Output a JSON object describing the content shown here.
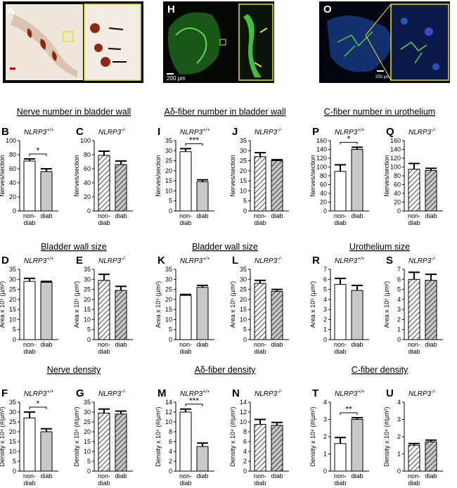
{
  "images": [
    {
      "letter": "A"
    },
    {
      "letter": "H",
      "scale_label": "200 µm"
    },
    {
      "letter": "O",
      "scale_label": "200 µm"
    }
  ],
  "group_titles": [
    "Nerve number in bladder wall",
    "Aδ-fiber number in bladder wall",
    "C-fiber number in urothelium",
    "Bladder wall size",
    "Bladder wall size",
    "Urothelium size",
    "Nerve density",
    "Aδ-fiber density",
    "C-fiber density"
  ],
  "chart_data": [
    {
      "type": "bar",
      "panel": "B",
      "genotype": "NLRP3+/+",
      "ylabel": "Nerves/section",
      "categories": [
        "non-diab",
        "diab"
      ],
      "values": [
        71,
        56
      ],
      "errors": [
        3,
        4
      ],
      "significance": "*",
      "ylim": [
        0,
        100
      ],
      "yticks": [
        0,
        20,
        40,
        60,
        80,
        100
      ],
      "colors": [
        "#ffffff",
        "#c8c8c8"
      ],
      "hatch": false
    },
    {
      "type": "bar",
      "panel": "C",
      "genotype": "NLRP3-/-",
      "ylabel": "Nerves/section",
      "categories": [
        "non-diab",
        "diab"
      ],
      "values": [
        79,
        66
      ],
      "errors": [
        6,
        5
      ],
      "ylim": [
        0,
        100
      ],
      "yticks": [
        0,
        20,
        40,
        60,
        80,
        100
      ],
      "colors": [
        "#ffffff",
        "#c8c8c8"
      ],
      "hatch": true
    },
    {
      "type": "bar",
      "panel": "I",
      "genotype": "NLRP3+/+",
      "ylabel": "Nerves/section",
      "categories": [
        "non-diab",
        "diab"
      ],
      "values": [
        29.5,
        14.5
      ],
      "errors": [
        1.5,
        1
      ],
      "significance": "***",
      "ylim": [
        0,
        35
      ],
      "yticks": [
        0,
        5,
        10,
        15,
        20,
        25,
        30,
        35
      ],
      "colors": [
        "#ffffff",
        "#c8c8c8"
      ],
      "hatch": false
    },
    {
      "type": "bar",
      "panel": "J",
      "genotype": "NLRP3-/-",
      "ylabel": "Nerves/section",
      "categories": [
        "non-diab",
        "diab"
      ],
      "values": [
        27,
        25
      ],
      "errors": [
        2,
        0.5
      ],
      "ylim": [
        0,
        35
      ],
      "yticks": [
        0,
        5,
        10,
        15,
        20,
        25,
        30,
        35
      ],
      "colors": [
        "#ffffff",
        "#c8c8c8"
      ],
      "hatch": true
    },
    {
      "type": "bar",
      "panel": "P",
      "genotype": "NLRP3+/+",
      "ylabel": "Nerves/section",
      "categories": [
        "non-diab",
        "diab"
      ],
      "values": [
        90,
        140
      ],
      "errors": [
        15,
        5
      ],
      "significance": "*",
      "ylim": [
        0,
        160
      ],
      "yticks": [
        0,
        20,
        40,
        60,
        80,
        100,
        120,
        140,
        160
      ],
      "colors": [
        "#ffffff",
        "#c8c8c8"
      ],
      "hatch": false
    },
    {
      "type": "bar",
      "panel": "Q",
      "genotype": "NLRP3-/-",
      "ylabel": "Nerves/section",
      "categories": [
        "non-diab",
        "diab"
      ],
      "values": [
        95,
        92
      ],
      "errors": [
        13,
        5
      ],
      "ylim": [
        0,
        160
      ],
      "yticks": [
        0,
        20,
        40,
        60,
        80,
        100,
        120,
        140,
        160
      ],
      "colors": [
        "#ffffff",
        "#c8c8c8"
      ],
      "hatch": true
    },
    {
      "type": "bar",
      "panel": "D",
      "genotype": "NLRP3+/+",
      "ylabel": "Area x 10⁵ (µm²)",
      "categories": [
        "non-diab",
        "diab"
      ],
      "values": [
        29,
        28.5
      ],
      "errors": [
        1.5,
        0.5
      ],
      "ylim": [
        0,
        35
      ],
      "yticks": [
        0,
        5,
        10,
        15,
        20,
        25,
        30,
        35
      ],
      "colors": [
        "#ffffff",
        "#c8c8c8"
      ],
      "hatch": false
    },
    {
      "type": "bar",
      "panel": "E",
      "genotype": "NLRP3-/-",
      "ylabel": "Area x 10⁵ (µm²)",
      "categories": [
        "non-diab",
        "diab"
      ],
      "values": [
        29.5,
        24.5
      ],
      "errors": [
        3,
        2
      ],
      "ylim": [
        0,
        35
      ],
      "yticks": [
        0,
        5,
        10,
        15,
        20,
        25,
        30,
        35
      ],
      "colors": [
        "#ffffff",
        "#c8c8c8"
      ],
      "hatch": true
    },
    {
      "type": "bar",
      "panel": "K",
      "genotype": "NLRP3+/+",
      "ylabel": "Area x 10⁵ (µm²)",
      "categories": [
        "non-diab",
        "diab"
      ],
      "values": [
        22,
        26
      ],
      "errors": [
        0.5,
        1
      ],
      "ylim": [
        0,
        35
      ],
      "yticks": [
        0,
        5,
        10,
        15,
        20,
        25,
        30,
        35
      ],
      "colors": [
        "#ffffff",
        "#c8c8c8"
      ],
      "hatch": false
    },
    {
      "type": "bar",
      "panel": "L",
      "genotype": "NLRP3-/-",
      "ylabel": "Area x 10⁵ (µm²)",
      "categories": [
        "non-diab",
        "diab"
      ],
      "values": [
        28,
        24
      ],
      "errors": [
        1.5,
        1
      ],
      "ylim": [
        0,
        35
      ],
      "yticks": [
        0,
        5,
        10,
        15,
        20,
        25,
        30,
        35
      ],
      "colors": [
        "#ffffff",
        "#c8c8c8"
      ],
      "hatch": true
    },
    {
      "type": "bar",
      "panel": "R",
      "genotype": "NLRP3+/+",
      "ylabel": "Area x 10⁵ (µm²)",
      "categories": [
        "non-diab",
        "diab"
      ],
      "values": [
        5.5,
        4.9
      ],
      "errors": [
        0.6,
        0.5
      ],
      "ylim": [
        0,
        7
      ],
      "yticks": [
        0,
        1,
        2,
        3,
        4,
        5,
        6,
        7
      ],
      "colors": [
        "#ffffff",
        "#c8c8c8"
      ],
      "hatch": false
    },
    {
      "type": "bar",
      "panel": "S",
      "genotype": "NLRP3-/-",
      "ylabel": "Area x 10⁵ (µm²)",
      "categories": [
        "non-diab",
        "diab"
      ],
      "values": [
        6,
        5.9
      ],
      "errors": [
        0.7,
        0.6
      ],
      "ylim": [
        0,
        7
      ],
      "yticks": [
        0,
        1,
        2,
        3,
        4,
        5,
        6,
        7
      ],
      "colors": [
        "#ffffff",
        "#c8c8c8"
      ],
      "hatch": true
    },
    {
      "type": "bar",
      "panel": "F",
      "genotype": "NLRP3+/+",
      "ylabel": "Density x 10⁴ (#/µm²)",
      "categories": [
        "non-diab",
        "diab"
      ],
      "values": [
        27,
        20
      ],
      "errors": [
        3,
        1.5
      ],
      "significance": "*",
      "ylim": [
        0,
        35
      ],
      "yticks": [
        0,
        5,
        10,
        15,
        20,
        25,
        30,
        35
      ],
      "colors": [
        "#ffffff",
        "#c8c8c8"
      ],
      "hatch": false
    },
    {
      "type": "bar",
      "panel": "G",
      "genotype": "NLRP3-/-",
      "ylabel": "Density x 10⁴ (#/µm²)",
      "categories": [
        "non-diab",
        "diab"
      ],
      "values": [
        29.5,
        29
      ],
      "errors": [
        2,
        1.5
      ],
      "ylim": [
        0,
        35
      ],
      "yticks": [
        0,
        5,
        10,
        15,
        20,
        25,
        30,
        35
      ],
      "colors": [
        "#ffffff",
        "#c8c8c8"
      ],
      "hatch": true
    },
    {
      "type": "bar",
      "panel": "M",
      "genotype": "NLRP3+/+",
      "ylabel": "Density x 10⁴ (#/µm²)",
      "categories": [
        "non-diab",
        "diab"
      ],
      "values": [
        12,
        5
      ],
      "errors": [
        0.6,
        0.7
      ],
      "significance": "***",
      "ylim": [
        0,
        14
      ],
      "yticks": [
        0,
        2,
        4,
        6,
        8,
        10,
        12,
        14
      ],
      "colors": [
        "#ffffff",
        "#c8c8c8"
      ],
      "hatch": false
    },
    {
      "type": "bar",
      "panel": "N",
      "genotype": "NLRP3-/-",
      "ylabel": "Density x 10⁴ (#/µm²)",
      "categories": [
        "non-diab",
        "diab"
      ],
      "values": [
        9.5,
        9.3
      ],
      "errors": [
        1,
        0.6
      ],
      "ylim": [
        0,
        14
      ],
      "yticks": [
        0,
        2,
        4,
        6,
        8,
        10,
        12,
        14
      ],
      "colors": [
        "#ffffff",
        "#c8c8c8"
      ],
      "hatch": true
    },
    {
      "type": "bar",
      "panel": "T",
      "genotype": "NLRP3+/+",
      "ylabel": "Density x 10⁴ (#/µm²)",
      "categories": [
        "non-diab",
        "diab"
      ],
      "values": [
        1.6,
        3.0
      ],
      "errors": [
        0.35,
        0.1
      ],
      "significance": "**",
      "ylim": [
        0,
        4
      ],
      "yticks": [
        0,
        1,
        2,
        3,
        4
      ],
      "colors": [
        "#ffffff",
        "#c8c8c8"
      ],
      "hatch": false
    },
    {
      "type": "bar",
      "panel": "U",
      "genotype": "NLRP3-/-",
      "ylabel": "Density x 10⁴ (#/µm²)",
      "categories": [
        "non-diab",
        "diab"
      ],
      "values": [
        1.5,
        1.7
      ],
      "errors": [
        0.1,
        0.1
      ],
      "ylim": [
        0,
        4
      ],
      "yticks": [
        0,
        1,
        2,
        3,
        4
      ],
      "colors": [
        "#ffffff",
        "#c8c8c8"
      ],
      "hatch": true
    }
  ]
}
